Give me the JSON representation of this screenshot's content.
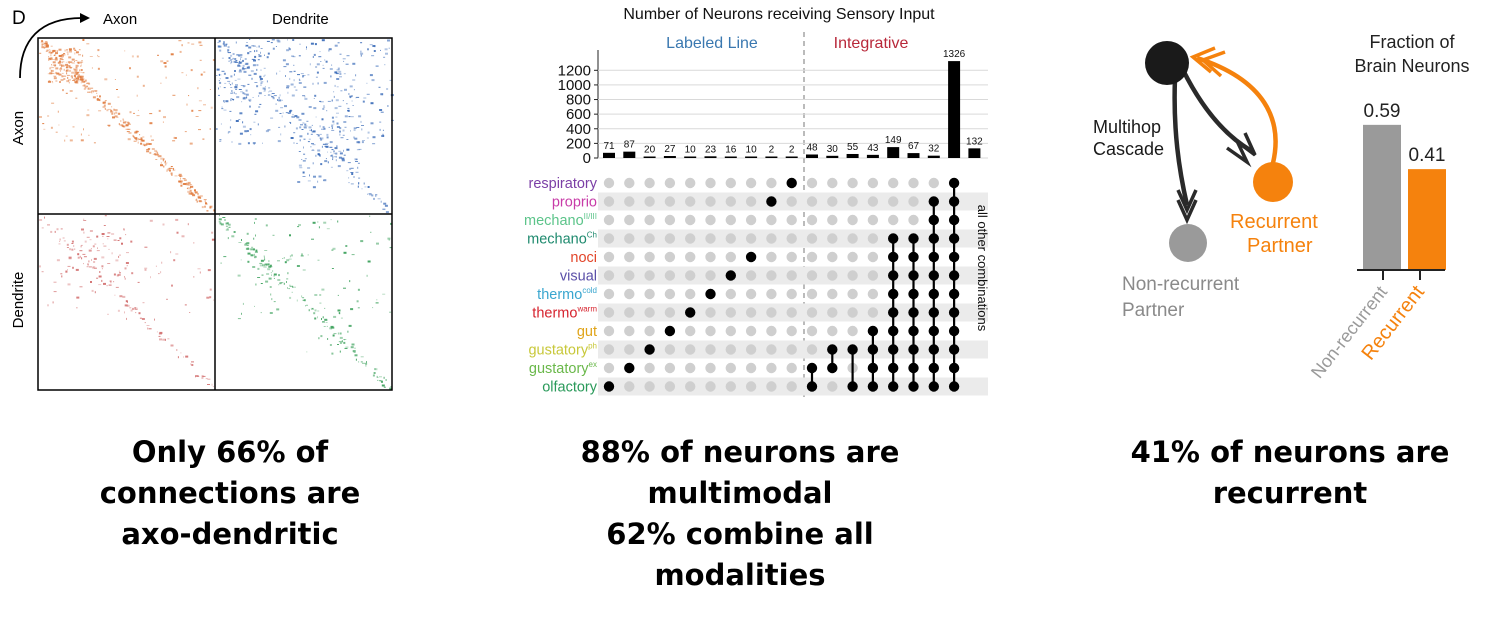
{
  "panel_a": {
    "panel_letter": "D",
    "col_labels": [
      "Axon",
      "Dendrite"
    ],
    "row_labels": [
      "Axon",
      "Dendrite"
    ],
    "quadrant_colors": {
      "aa": "#e07a3c",
      "ad": "#3a6bb8",
      "da": "#d16b6b",
      "dd": "#3aa05a"
    }
  },
  "captions": {
    "left": [
      "Only 66% of",
      "connections are",
      "axo-dendritic"
    ],
    "middle": [
      "88% of neurons are",
      "multimodal",
      "62% combine all",
      "modalities"
    ],
    "right": [
      "41% of neurons are",
      "recurrent"
    ]
  },
  "diagram": {
    "multihop_label": [
      "Multihop",
      "Cascade"
    ],
    "recurrent_label": [
      "Recurrent",
      "Partner"
    ],
    "nonrecurrent_label": [
      "Non-recurrent",
      "Partner"
    ],
    "colors": {
      "black": "#1a1a1a",
      "orange": "#f5820d",
      "gray": "#9a9a9a"
    }
  },
  "chart_data": [
    {
      "type": "bar",
      "title": "Number of Neurons receiving Sensory Input",
      "group_labels": [
        "Labeled Line",
        "Integrative"
      ],
      "group_colors": [
        "#3a78b0",
        "#b8283a"
      ],
      "ylim": [
        0,
        1326
      ],
      "yticks": [
        0,
        200,
        400,
        600,
        800,
        1000,
        1200
      ],
      "values": [
        71,
        87,
        20,
        27,
        10,
        23,
        16,
        10,
        2,
        2,
        48,
        30,
        55,
        43,
        149,
        67,
        32,
        1326,
        132
      ],
      "modalities": [
        {
          "label": "respiratory",
          "sup": "",
          "color": "#7b3fa6"
        },
        {
          "label": "proprio",
          "sup": "",
          "color": "#c83ca8"
        },
        {
          "label": "mechano",
          "sup": "II/III",
          "color": "#5cc48a"
        },
        {
          "label": "mechano",
          "sup": "Ch",
          "color": "#1e8a6e"
        },
        {
          "label": "noci",
          "sup": "",
          "color": "#e2452a"
        },
        {
          "label": "visual",
          "sup": "",
          "color": "#5a4fa8"
        },
        {
          "label": "thermo",
          "sup": "cold",
          "color": "#3aa6cf"
        },
        {
          "label": "thermo",
          "sup": "warm",
          "color": "#d6232e"
        },
        {
          "label": "gut",
          "sup": "",
          "color": "#e0a419"
        },
        {
          "label": "gustatory",
          "sup": "ph",
          "color": "#c8c83a"
        },
        {
          "label": "gustatory",
          "sup": "ex",
          "color": "#6ab84a"
        },
        {
          "label": "olfactory",
          "sup": "",
          "color": "#2a9a5a"
        }
      ],
      "combinations": [
        [
          11
        ],
        [
          10
        ],
        [
          9
        ],
        [
          8
        ],
        [
          7
        ],
        [
          6
        ],
        [
          5
        ],
        [
          4
        ],
        [
          1
        ],
        [
          0
        ],
        [
          10,
          11
        ],
        [
          9,
          10
        ],
        [
          9,
          11
        ],
        [
          8,
          9,
          10,
          11
        ],
        [
          3,
          4,
          5,
          6,
          7,
          8,
          9,
          10,
          11
        ],
        [
          3,
          4,
          5,
          6,
          7,
          8,
          9,
          10,
          11
        ],
        [
          1,
          2,
          3,
          4,
          5,
          6,
          7,
          8,
          9,
          10,
          11
        ],
        [
          0,
          1,
          2,
          3,
          4,
          5,
          6,
          7,
          8,
          9,
          10,
          11
        ]
      ],
      "other_label": "all other combinations"
    },
    {
      "type": "bar",
      "title": "Fraction of Brain Neurons",
      "categories": [
        "Non-recurrent",
        "Recurrent"
      ],
      "values": [
        0.59,
        0.41
      ],
      "colors": [
        "#9a9a9a",
        "#f5820d"
      ],
      "ylim": [
        0,
        0.7
      ]
    }
  ]
}
